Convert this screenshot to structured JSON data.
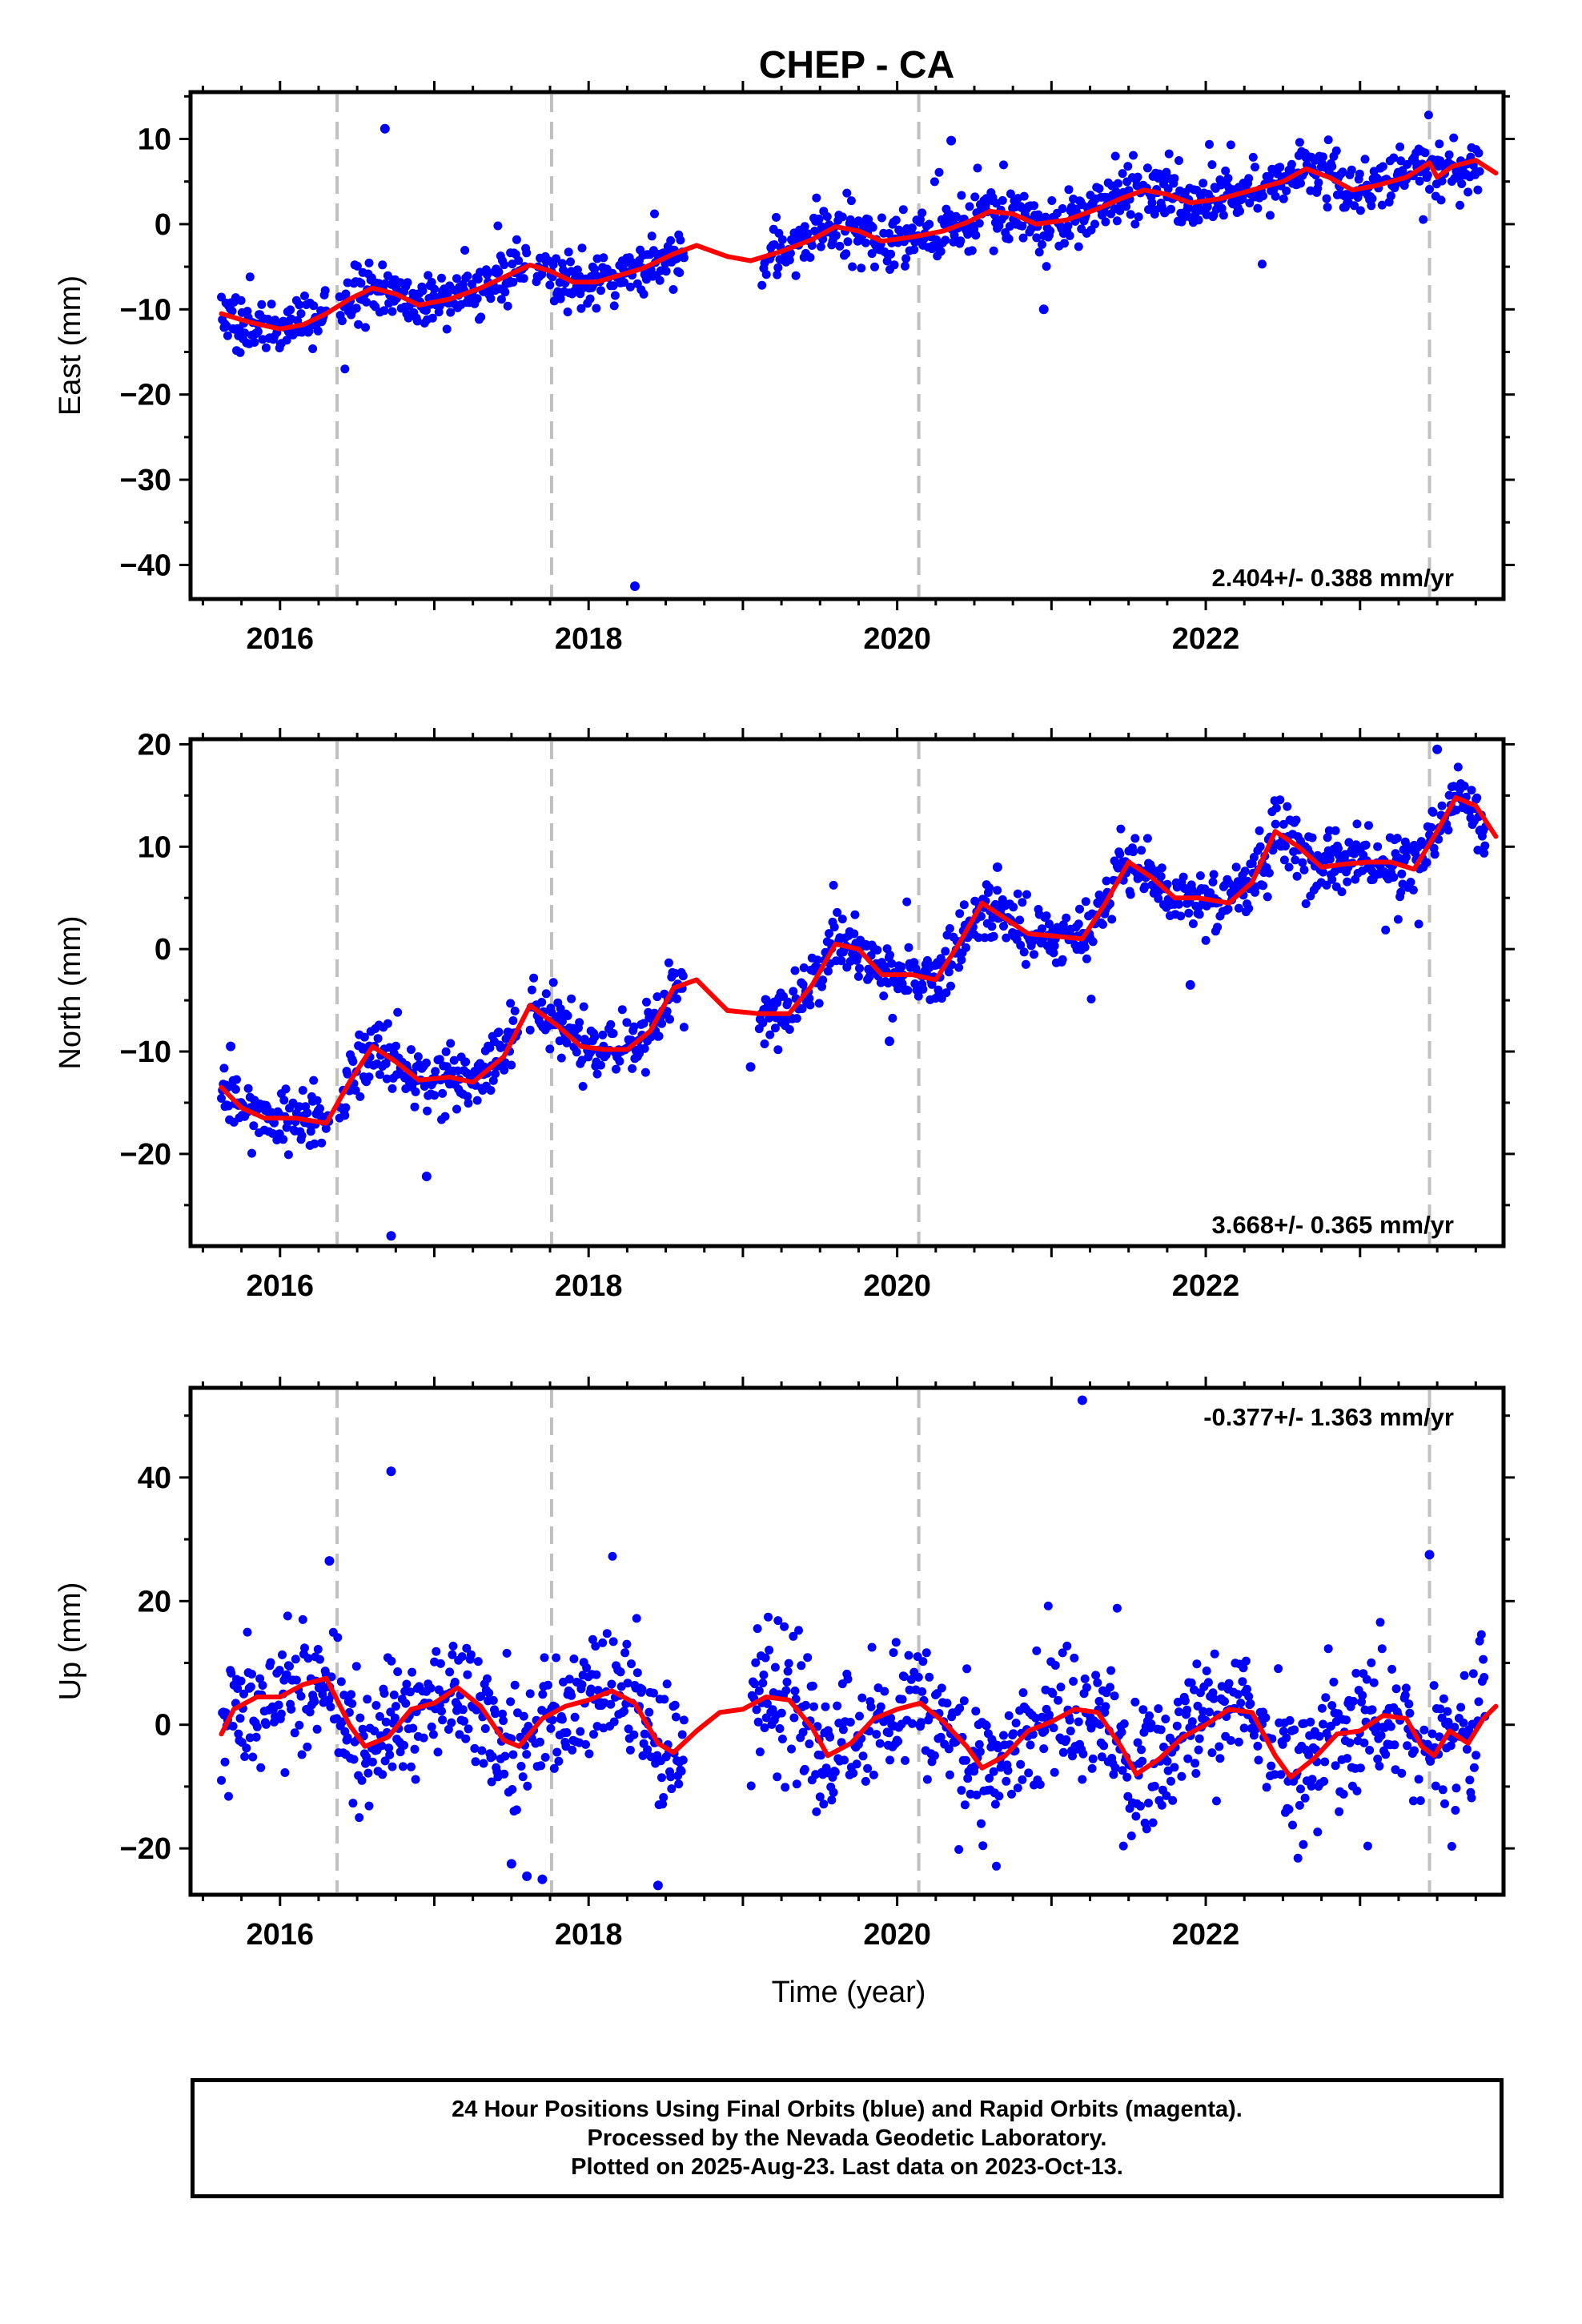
{
  "figure": {
    "title": "CHEP - CA",
    "x_axis_label": "Time (year)"
  },
  "colors": {
    "points": "#0000ff",
    "trend": "#ff0000",
    "steps": "#c0c0c0",
    "frame": "#000000"
  },
  "chart_data": [
    {
      "type": "scatter",
      "component": "east",
      "ylabel": "East (mm)",
      "xlim": [
        2015.42,
        2023.93
      ],
      "ylim": [
        -44,
        15.5
      ],
      "xticks": [
        2016,
        2018,
        2020,
        2022
      ],
      "yticks": [
        10,
        0,
        -10,
        -20,
        -30,
        -40
      ],
      "rate_label": "2.404+/- 0.388 mm/yr",
      "rate_position": "bottom-right",
      "step_lines": [
        2016.37,
        2017.76,
        2020.14,
        2023.45
      ],
      "trend": {
        "x": [
          2015.62,
          2015.8,
          2016.0,
          2016.15,
          2016.3,
          2016.45,
          2016.6,
          2016.75,
          2016.9,
          2017.1,
          2017.3,
          2017.5,
          2017.62,
          2017.75,
          2017.9,
          2018.05,
          2018.2,
          2018.35,
          2018.55,
          2018.7,
          2018.9,
          2019.05,
          2019.25,
          2019.45,
          2019.6,
          2019.75,
          2019.9,
          2020.1,
          2020.3,
          2020.45,
          2020.6,
          2020.75,
          2020.9,
          2021.1,
          2021.3,
          2021.45,
          2021.6,
          2021.75,
          2021.9,
          2022.1,
          2022.3,
          2022.5,
          2022.65,
          2022.8,
          2022.95,
          2023.1,
          2023.3,
          2023.45,
          2023.5,
          2023.6,
          2023.75,
          2023.88
        ],
        "y": [
          -10.5,
          -11.5,
          -12.3,
          -11.8,
          -10.5,
          -8.8,
          -7.5,
          -8.2,
          -9.5,
          -8.8,
          -7.5,
          -5.8,
          -4.8,
          -5.5,
          -6.8,
          -6.8,
          -6.0,
          -5.2,
          -3.5,
          -2.5,
          -3.8,
          -4.3,
          -3.2,
          -1.8,
          -0.3,
          -0.8,
          -2.0,
          -1.5,
          -0.8,
          0.2,
          1.5,
          1.2,
          0.0,
          0.5,
          1.8,
          3.0,
          4.0,
          3.5,
          2.5,
          3.0,
          4.0,
          5.0,
          6.5,
          5.5,
          4.0,
          4.5,
          5.5,
          7.2,
          5.5,
          6.8,
          7.5,
          6.0
        ],
        "width": 6
      },
      "outliers": {
        "x": [
          2016.68,
          2018.3,
          2020.35,
          2020.95
        ],
        "y": [
          11.2,
          -42.5,
          9.8,
          -10.0
        ]
      },
      "series_model": {
        "t_start": 2015.62,
        "t_end": 2023.78,
        "gaps": [
          [
            2017.6,
            2017.66
          ],
          [
            2018.62,
            2019.12
          ],
          [
            2016.3,
            2016.38
          ]
        ],
        "sparse_ranges": [
          [
            2018.62,
            2019.12
          ]
        ],
        "noise": 1.5,
        "outlier_noise": 3.5,
        "step": 0.0058,
        "seed": 11
      }
    },
    {
      "type": "scatter",
      "component": "north",
      "ylabel": "North (mm)",
      "xlim": [
        2015.42,
        2023.93
      ],
      "ylim": [
        -29,
        20.5
      ],
      "xticks": [
        2016,
        2018,
        2020,
        2022
      ],
      "yticks": [
        20,
        10,
        0,
        -10,
        -20
      ],
      "rate_label": "3.668+/- 0.365 mm/yr",
      "rate_position": "bottom-right",
      "step_lines": [
        2016.37,
        2017.76,
        2020.14,
        2023.45
      ],
      "trend": {
        "x": [
          2015.62,
          2015.75,
          2015.9,
          2016.1,
          2016.3,
          2016.45,
          2016.6,
          2016.75,
          2016.9,
          2017.1,
          2017.25,
          2017.45,
          2017.62,
          2017.8,
          2017.95,
          2018.1,
          2018.25,
          2018.4,
          2018.55,
          2018.7,
          2018.9,
          2019.1,
          2019.3,
          2019.45,
          2019.6,
          2019.75,
          2019.9,
          2020.1,
          2020.25,
          2020.4,
          2020.55,
          2020.7,
          2020.85,
          2021.0,
          2021.2,
          2021.35,
          2021.5,
          2021.65,
          2021.8,
          2021.95,
          2022.15,
          2022.3,
          2022.45,
          2022.6,
          2022.75,
          2022.9,
          2023.05,
          2023.2,
          2023.35,
          2023.5,
          2023.62,
          2023.75,
          2023.88
        ],
        "y": [
          -13.5,
          -15.5,
          -16.5,
          -16.5,
          -17.0,
          -13.0,
          -9.5,
          -11.0,
          -12.8,
          -12.5,
          -13.0,
          -10.5,
          -5.5,
          -7.5,
          -9.5,
          -9.8,
          -9.8,
          -8.0,
          -3.8,
          -3.0,
          -6.0,
          -6.3,
          -6.3,
          -3.5,
          0.5,
          0.0,
          -2.5,
          -2.5,
          -3.0,
          0.5,
          4.5,
          3.0,
          1.5,
          1.3,
          1.0,
          4.5,
          8.5,
          7.0,
          5.0,
          5.0,
          4.5,
          6.5,
          11.5,
          10.0,
          8.0,
          8.3,
          8.5,
          8.5,
          7.8,
          11.5,
          14.8,
          14.0,
          11.0
        ],
        "width": 6
      },
      "outliers": {
        "x": [
          2015.68,
          2016.58,
          2016.72,
          2016.95,
          2019.05,
          2019.95,
          2020.65,
          2021.9,
          2023.5
        ],
        "y": [
          -9.5,
          -9.5,
          -28.0,
          -22.2,
          -11.5,
          -9.0,
          8.0,
          -3.5,
          19.5
        ]
      },
      "series_model": {
        "t_start": 2015.62,
        "t_end": 2023.82,
        "gaps": [
          [
            2017.55,
            2017.62
          ],
          [
            2018.62,
            2019.1
          ],
          [
            2016.32,
            2016.38
          ]
        ],
        "sparse_ranges": [
          [
            2018.62,
            2019.1
          ]
        ],
        "noise": 1.4,
        "outlier_noise": 3.0,
        "step": 0.0058,
        "seed": 27
      }
    },
    {
      "type": "scatter",
      "component": "up",
      "ylabel": "Up (mm)",
      "xlim": [
        2015.42,
        2023.93
      ],
      "ylim": [
        -27.5,
        54.5
      ],
      "xticks": [
        2016,
        2018,
        2020,
        2022
      ],
      "yticks": [
        40,
        20,
        0,
        -20
      ],
      "rate_label": "-0.377+/- 1.363 mm/yr",
      "rate_position": "top-right",
      "step_lines": [
        2016.37,
        2017.76,
        2020.14,
        2023.45
      ],
      "trend": {
        "x": [
          2015.62,
          2015.7,
          2015.85,
          2016.0,
          2016.15,
          2016.3,
          2016.45,
          2016.55,
          2016.7,
          2016.85,
          2017.0,
          2017.15,
          2017.3,
          2017.45,
          2017.55,
          2017.7,
          2017.85,
          2018.0,
          2018.15,
          2018.3,
          2018.45,
          2018.55,
          2018.7,
          2018.85,
          2019.0,
          2019.15,
          2019.3,
          2019.45,
          2019.55,
          2019.7,
          2019.85,
          2020.0,
          2020.15,
          2020.3,
          2020.45,
          2020.55,
          2020.7,
          2020.85,
          2021.0,
          2021.15,
          2021.3,
          2021.45,
          2021.55,
          2021.7,
          2021.85,
          2022.0,
          2022.15,
          2022.3,
          2022.45,
          2022.55,
          2022.7,
          2022.85,
          2023.0,
          2023.15,
          2023.3,
          2023.4,
          2023.48,
          2023.58,
          2023.7,
          2023.8,
          2023.88
        ],
        "y": [
          -1.5,
          2.5,
          4.5,
          4.5,
          6.5,
          7.5,
          0.0,
          -3.5,
          -2.0,
          2.5,
          3.5,
          6.0,
          3.0,
          -2.5,
          -3.5,
          1.0,
          3.0,
          4.0,
          5.5,
          3.5,
          -3.0,
          -4.5,
          -1.0,
          2.0,
          2.5,
          4.5,
          4.0,
          -0.5,
          -5.0,
          -3.0,
          1.0,
          2.5,
          3.5,
          0.5,
          -3.5,
          -7.0,
          -5.0,
          -1.0,
          0.5,
          2.5,
          2.0,
          -3.5,
          -8.0,
          -5.5,
          -2.0,
          0.0,
          2.5,
          2.0,
          -5.0,
          -8.5,
          -5.5,
          -1.5,
          -1.0,
          1.5,
          1.0,
          -3.5,
          -5.0,
          -1.0,
          -3.0,
          1.0,
          3.0
        ],
        "width": 6
      },
      "outliers": {
        "x": [
          2016.32,
          2016.72,
          2017.5,
          2017.6,
          2017.7,
          2018.45,
          2021.2,
          2023.45
        ],
        "y": [
          26.5,
          41.0,
          -22.5,
          -24.5,
          -25.0,
          -26.0,
          52.5,
          27.5
        ]
      },
      "series_model": {
        "t_start": 2015.62,
        "t_end": 2023.82,
        "gaps": [
          [
            2018.62,
            2019.05
          ]
        ],
        "sparse_ranges": [
          [
            2018.62,
            2019.05
          ]
        ],
        "noise": 5.2,
        "outlier_noise": 9.0,
        "step": 0.0058,
        "seed": 53
      }
    }
  ],
  "footer": {
    "line1": "24 Hour Positions Using Final Orbits (blue) and Rapid Orbits (magenta).",
    "line2": "Processed by the Nevada Geodetic Laboratory.",
    "line3": "Plotted on 2025-Aug-23. Last data on 2023-Oct-13."
  }
}
